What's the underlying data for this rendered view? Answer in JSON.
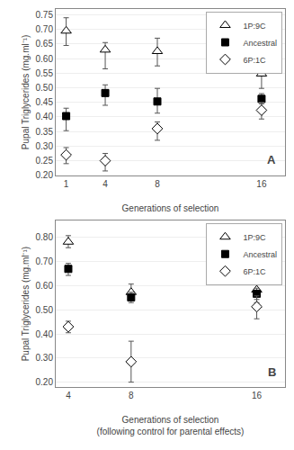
{
  "chart_data": [
    {
      "type": "scatter",
      "x_label": "Generations of selection",
      "y_label": "Pupal Triglycerides (mg.ml⁻¹)",
      "annotations": [
        "A"
      ],
      "xlim": [
        0.2,
        17.8
      ],
      "xticks": [
        1,
        4,
        8,
        16
      ],
      "ylim": [
        0.2,
        0.77
      ],
      "yticks": [
        {
          "value": 0.2,
          "label": "0.20"
        },
        0.25,
        {
          "value": 0.3,
          "label": "0.30"
        },
        0.35,
        {
          "value": 0.4,
          "label": "0.40"
        },
        0.45,
        {
          "value": 0.5,
          "label": "0.50"
        },
        0.55,
        {
          "value": 0.6,
          "label": "0.60"
        },
        0.65,
        {
          "value": 0.7,
          "label": "0.70"
        },
        0.75
      ],
      "grid": true,
      "legend": "upper right",
      "series": [
        {
          "name": "1P:9C",
          "marker": "triangle",
          "color": "white",
          "x": [
            1,
            4,
            8,
            16
          ],
          "values": [
            0.695,
            0.63,
            0.625,
            0.548
          ],
          "yerr_lo": [
            0.05,
            0.065,
            0.05,
            0.05
          ],
          "yerr_hi": [
            0.045,
            0.025,
            0.045,
            0.037
          ]
        },
        {
          "name": "Ancestral",
          "marker": "square",
          "color": "black",
          "x": [
            1,
            4,
            8,
            16
          ],
          "values": [
            0.403,
            0.482,
            0.453,
            0.462
          ],
          "yerr_lo": [
            0.05,
            0.042,
            0.04,
            0.017
          ],
          "yerr_hi": [
            0.027,
            0.028,
            0.045,
            0.018
          ]
        },
        {
          "name": "6P:1C",
          "marker": "diamond",
          "color": "white",
          "x": [
            1,
            4,
            8,
            16
          ],
          "values": [
            0.27,
            0.25,
            0.36,
            0.423
          ],
          "yerr_lo": [
            0.03,
            0.035,
            0.04,
            0.03
          ],
          "yerr_hi": [
            0.025,
            0.025,
            0.023,
            0.027
          ]
        }
      ]
    },
    {
      "type": "scatter",
      "x_label": "Generations of selection\n(following control for parental effects)",
      "y_label": "Pupal Triglycerides (mg.ml⁻¹)",
      "annotations": [
        "B"
      ],
      "xlim": [
        3.2,
        17.8
      ],
      "xticks": [
        4,
        8,
        16
      ],
      "ylim": [
        0.18,
        0.87
      ],
      "yticks": [
        {
          "value": 0.2,
          "label": "0.20"
        },
        {
          "value": 0.3,
          "label": "0.30"
        },
        {
          "value": 0.4,
          "label": "0.40"
        },
        {
          "value": 0.5,
          "label": "0.50"
        },
        {
          "value": 0.6,
          "label": "0.60"
        },
        {
          "value": 0.7,
          "label": "0.70"
        },
        {
          "value": 0.8,
          "label": "0.80"
        }
      ],
      "grid": true,
      "legend": "upper right",
      "series": [
        {
          "name": "1P:9C",
          "marker": "triangle",
          "color": "white",
          "x": [
            4,
            8,
            16
          ],
          "values": [
            0.782,
            0.573,
            0.583
          ],
          "yerr_lo": [
            0.024,
            0.025,
            0.053
          ],
          "yerr_hi": [
            0.026,
            0.034,
            0.037
          ]
        },
        {
          "name": "Ancestral",
          "marker": "square",
          "color": "black",
          "x": [
            4,
            8,
            16
          ],
          "values": [
            0.67,
            0.552,
            0.567
          ],
          "yerr_lo": [
            0.027,
            0.022,
            0.024
          ],
          "yerr_hi": [
            0.023,
            0.021,
            0.023
          ]
        },
        {
          "name": "6P:1C",
          "marker": "diamond",
          "color": "white",
          "x": [
            4,
            8,
            16
          ],
          "values": [
            0.43,
            0.285,
            0.513
          ],
          "yerr_lo": [
            0.025,
            0.085,
            0.05
          ],
          "yerr_hi": [
            0.023,
            0.085,
            0.045
          ]
        }
      ]
    }
  ]
}
